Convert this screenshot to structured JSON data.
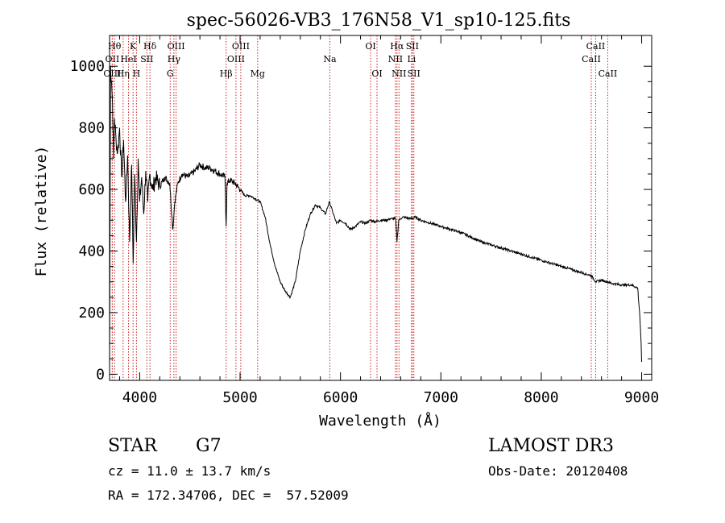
{
  "chart_data": {
    "type": "line",
    "title": "spec-56026-VB3_176N58_V1_sp10-125.fits",
    "xlabel": "Wavelength (Å)",
    "ylabel": "Flux (relative)",
    "xlim": [
      3700,
      9100
    ],
    "ylim": [
      -20,
      1100
    ],
    "xticks": [
      4000,
      5000,
      6000,
      7000,
      8000,
      9000
    ],
    "yticks": [
      0,
      200,
      400,
      600,
      800,
      1000
    ],
    "series": [
      {
        "name": "flux",
        "x": [
          3700,
          3710,
          3720,
          3730,
          3740,
          3750,
          3765,
          3780,
          3800,
          3820,
          3840,
          3860,
          3880,
          3900,
          3920,
          3935,
          3950,
          3968,
          3985,
          4000,
          4020,
          4040,
          4060,
          4080,
          4100,
          4130,
          4160,
          4200,
          4250,
          4300,
          4330,
          4350,
          4380,
          4420,
          4480,
          4550,
          4600,
          4650,
          4700,
          4750,
          4800,
          4850,
          4861,
          4870,
          4900,
          4950,
          5000,
          5050,
          5100,
          5150,
          5200,
          5250,
          5300,
          5350,
          5400,
          5450,
          5500,
          5550,
          5600,
          5650,
          5700,
          5750,
          5800,
          5850,
          5890,
          5920,
          5960,
          6000,
          6050,
          6100,
          6150,
          6200,
          6250,
          6300,
          6350,
          6400,
          6450,
          6500,
          6550,
          6563,
          6580,
          6620,
          6700,
          6750,
          6800,
          6900,
          7000,
          7100,
          7200,
          7300,
          7400,
          7500,
          7600,
          7700,
          7800,
          7900,
          8000,
          8100,
          8200,
          8300,
          8400,
          8500,
          8542,
          8600,
          8662,
          8700,
          8800,
          8900,
          8960,
          8980,
          8995,
          9000
        ],
        "values": [
          0,
          1000,
          950,
          880,
          700,
          830,
          760,
          720,
          800,
          640,
          760,
          560,
          710,
          430,
          680,
          360,
          650,
          430,
          700,
          560,
          640,
          520,
          660,
          560,
          650,
          600,
          640,
          610,
          640,
          620,
          470,
          560,
          620,
          650,
          640,
          660,
          680,
          670,
          670,
          660,
          650,
          640,
          480,
          620,
          630,
          620,
          600,
          580,
          580,
          570,
          560,
          510,
          420,
          350,
          300,
          270,
          250,
          300,
          400,
          470,
          520,
          550,
          540,
          520,
          560,
          530,
          490,
          500,
          490,
          470,
          480,
          495,
          490,
          500,
          495,
          500,
          500,
          505,
          505,
          430,
          500,
          510,
          505,
          510,
          500,
          490,
          480,
          470,
          460,
          445,
          430,
          420,
          410,
          400,
          390,
          380,
          370,
          360,
          350,
          340,
          330,
          320,
          300,
          305,
          300,
          295,
          290,
          290,
          280,
          200,
          100,
          40
        ]
      }
    ],
    "lines": [
      {
        "label": "Hθ",
        "wave": 3750,
        "row": 1
      },
      {
        "label": "OII",
        "wave": 3727,
        "row": 2
      },
      {
        "label": "OIII",
        "wave": 3727,
        "row": 3
      },
      {
        "label": "Hη",
        "wave": 3835,
        "row": 3
      },
      {
        "label": "HeI",
        "wave": 3889,
        "row": 2
      },
      {
        "label": "K",
        "wave": 3934,
        "row": 1
      },
      {
        "label": "H",
        "wave": 3968,
        "row": 3
      },
      {
        "label": "SII",
        "wave": 4072,
        "row": 2
      },
      {
        "label": "Hδ",
        "wave": 4102,
        "row": 1
      },
      {
        "label": "G",
        "wave": 4304,
        "row": 3
      },
      {
        "label": "Hγ",
        "wave": 4341,
        "row": 2
      },
      {
        "label": "OIII",
        "wave": 4363,
        "row": 1
      },
      {
        "label": "Hβ",
        "wave": 4861,
        "row": 3
      },
      {
        "label": "OIII",
        "wave": 4959,
        "row": 2
      },
      {
        "label": "OIII",
        "wave": 5007,
        "row": 1
      },
      {
        "label": "Mg",
        "wave": 5175,
        "row": 3
      },
      {
        "label": "Na",
        "wave": 5894,
        "row": 2
      },
      {
        "label": "OI",
        "wave": 6300,
        "row": 1
      },
      {
        "label": "OI",
        "wave": 6364,
        "row": 3
      },
      {
        "label": "NII",
        "wave": 6548,
        "row": 2
      },
      {
        "label": "Hα",
        "wave": 6563,
        "row": 1
      },
      {
        "label": "NII",
        "wave": 6583,
        "row": 3
      },
      {
        "label": "Li",
        "wave": 6708,
        "row": 2
      },
      {
        "label": "SII",
        "wave": 6716,
        "row": 1
      },
      {
        "label": "SII",
        "wave": 6731,
        "row": 3
      },
      {
        "label": "CaII",
        "wave": 8498,
        "row": 2
      },
      {
        "label": "CaII",
        "wave": 8542,
        "row": 1
      },
      {
        "label": "CaII",
        "wave": 8662,
        "row": 3
      }
    ],
    "line_color": "#cc2222"
  },
  "info": {
    "class": "STAR",
    "subclass": "G7",
    "survey": "LAMOST DR3",
    "cz": "cz = 11.0 ± 13.7 km/s",
    "obs_date": "Obs-Date: 20120408",
    "coords": "RA = 172.34706, DEC =  57.52009"
  }
}
